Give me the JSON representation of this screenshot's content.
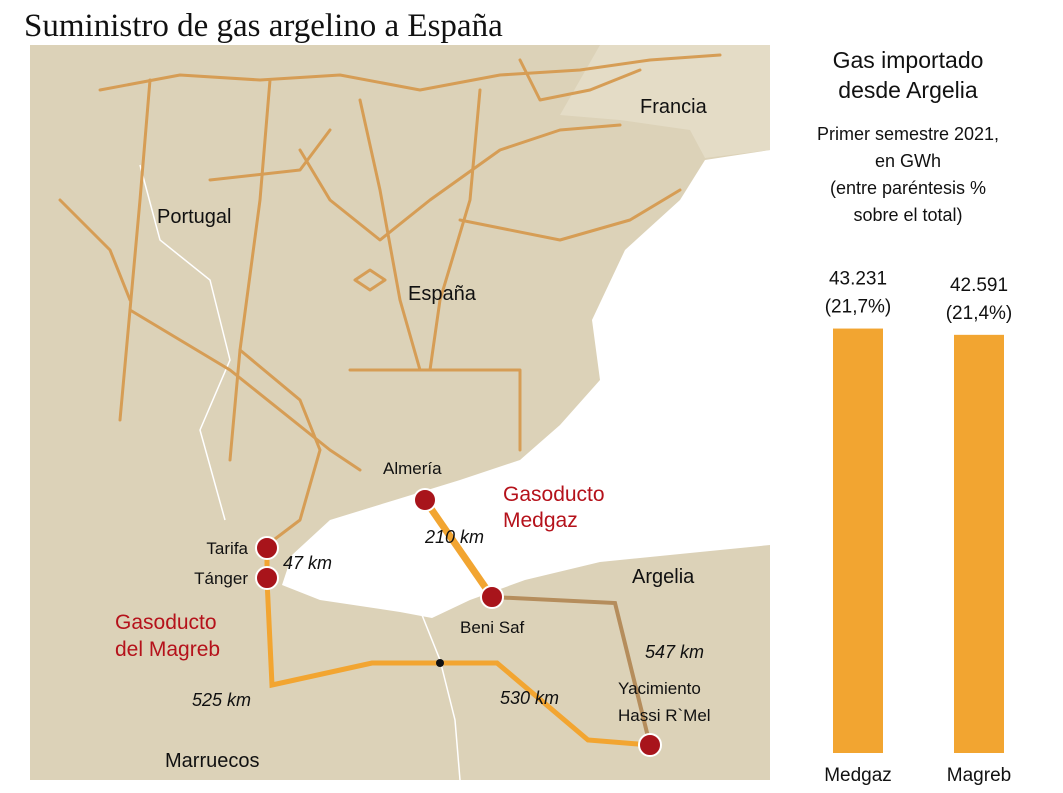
{
  "title": "Suministro de gas argelino a España",
  "map": {
    "countries": {
      "francia": "Francia",
      "portugal": "Portugal",
      "espana": "España",
      "argelia": "Argelia",
      "marruecos": "Marruecos"
    },
    "places": {
      "almeria": "Almería",
      "tarifa": "Tarifa",
      "tanger": "Tánger",
      "beni_saf": "Beni Saf",
      "hassi": [
        "Yacimiento",
        "Hassi R`Mel"
      ]
    },
    "pipelines": {
      "medgaz": [
        "Gasoducto",
        "Medgaz"
      ],
      "magreb": [
        "Gasoducto",
        "del Magreb"
      ]
    },
    "distances": {
      "medgaz": "210 km",
      "strait": "47 km",
      "beni_hassi": "547 km",
      "magreb_west": "525 km",
      "magreb_east": "530 km"
    }
  },
  "chart_data": {
    "type": "bar",
    "title": [
      "Gas importado",
      "desde Argelia"
    ],
    "subtitle": [
      "Primer semestre 2021,",
      "en GWh",
      "(entre paréntesis %",
      "sobre el total)"
    ],
    "categories": [
      "Medgaz",
      "Magreb"
    ],
    "values": [
      43231,
      42591
    ],
    "value_labels": [
      "43.231",
      "42.591"
    ],
    "share_labels": [
      "(21,7%)",
      "(21,4%)"
    ],
    "color": "#f2a531",
    "ylim": [
      0,
      44000
    ]
  }
}
